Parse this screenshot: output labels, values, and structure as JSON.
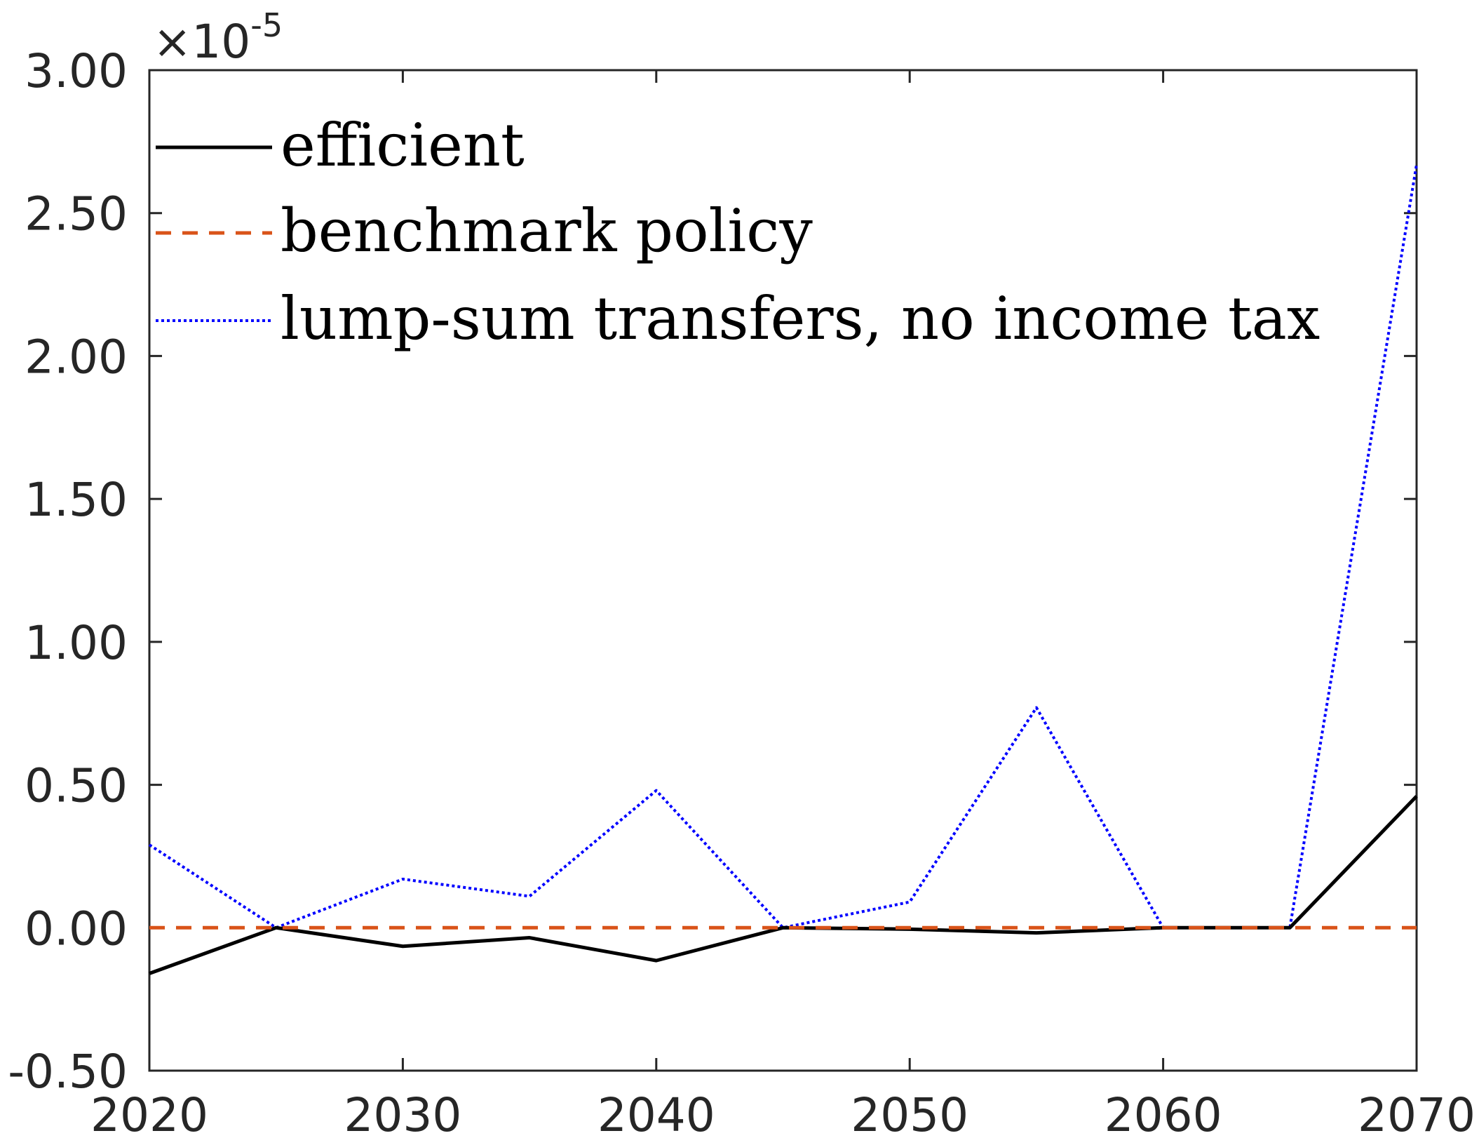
{
  "chart_data": {
    "type": "line",
    "x": [
      2020,
      2025,
      2030,
      2035,
      2040,
      2045,
      2050,
      2055,
      2060,
      2065,
      2070
    ],
    "series": [
      {
        "name": "efficient",
        "values": [
          -0.16,
          0.0,
          -0.065,
          -0.035,
          -0.115,
          0.0,
          -0.005,
          -0.018,
          0.0,
          0.0,
          0.46
        ],
        "color": "#000000",
        "style": "solid"
      },
      {
        "name": "benchmark policy",
        "values": [
          0,
          0,
          0,
          0,
          0,
          0,
          0,
          0,
          0,
          0,
          0
        ],
        "color": "#D95319",
        "style": "dashed"
      },
      {
        "name": "lump-sum transfers, no income tax",
        "values": [
          0.29,
          0.0,
          0.17,
          0.11,
          0.48,
          0.0,
          0.09,
          0.77,
          0.0,
          0.0,
          2.67
        ],
        "color": "#0000FF",
        "style": "dotted"
      }
    ],
    "xlim": [
      2020,
      2070
    ],
    "ylim": [
      -0.5,
      3.0
    ],
    "x_ticks": [
      "2020",
      "2030",
      "2040",
      "2050",
      "2060",
      "2070"
    ],
    "y_ticks": [
      "-0.50",
      "0.00",
      "0.50",
      "1.00",
      "1.50",
      "2.00",
      "2.50",
      "3.00"
    ],
    "y_multiplier": "×10",
    "y_multiplier_exponent": "-5",
    "legend_position": "top-left",
    "grid": false
  }
}
